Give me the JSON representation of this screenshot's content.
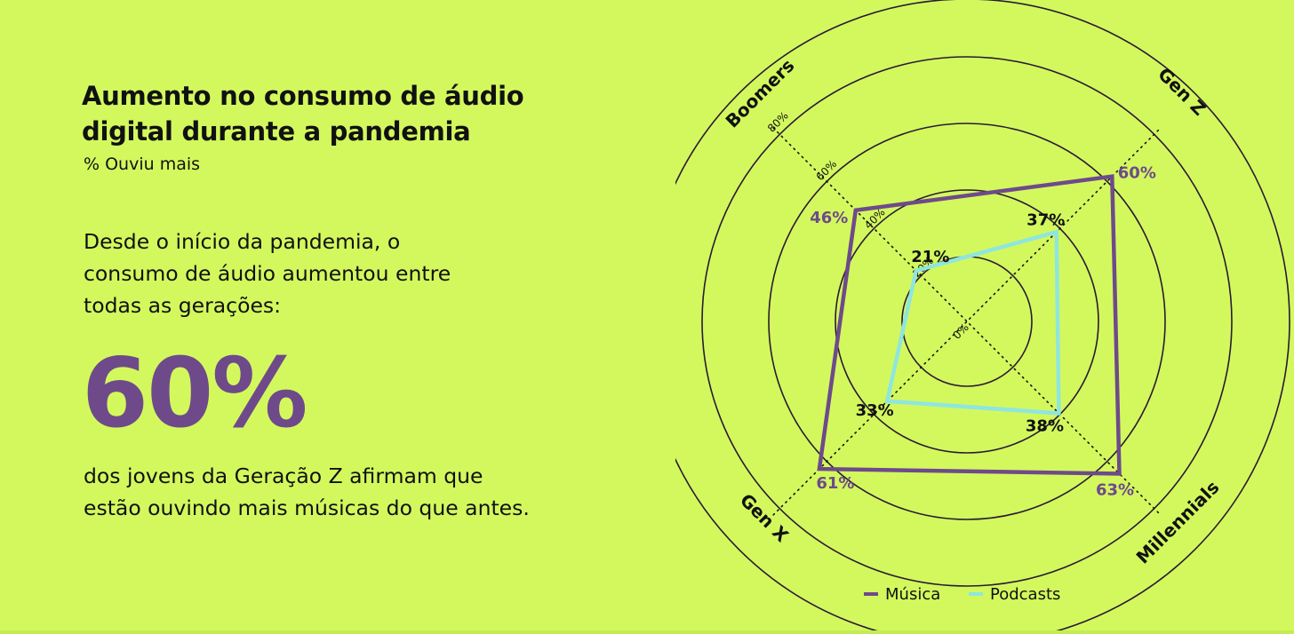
{
  "colors": {
    "background": "#d3f85e",
    "musica": "#6e4a8a",
    "podcasts": "#8ee6de",
    "ink": "#111111"
  },
  "heading": {
    "title_line1": "Aumento no consumo de áudio",
    "title_line2": "digital durante a pandemia",
    "subtitle": "% Ouviu mais"
  },
  "body": {
    "intro_line1": "Desde o início da pandemia, o",
    "intro_line2": "consumo de áudio aumentou entre",
    "intro_line3": "todas as gerações:",
    "highlight": "60%",
    "outro_line1": "dos jovens da Geração Z afirmam que",
    "outro_line2": "estão ouvindo mais músicas do que antes."
  },
  "chart_data": {
    "type": "radar",
    "categories": [
      "Gen Z",
      "Millennials",
      "Gen X",
      "Boomers"
    ],
    "rlim": [
      0,
      80
    ],
    "ring_ticks": [
      "0%",
      "20%",
      "40%",
      "60%",
      "80%"
    ],
    "series": [
      {
        "name": "Música",
        "values": [
          60,
          63,
          61,
          46
        ],
        "labels": [
          "60%",
          "63%",
          "61%",
          "46%"
        ]
      },
      {
        "name": "Podcasts",
        "values": [
          37,
          38,
          33,
          21
        ],
        "labels": [
          "37%",
          "38%",
          "33%",
          "21%"
        ]
      }
    ],
    "legend": {
      "placement": "bottom",
      "entries": [
        "Música",
        "Podcasts"
      ]
    }
  }
}
